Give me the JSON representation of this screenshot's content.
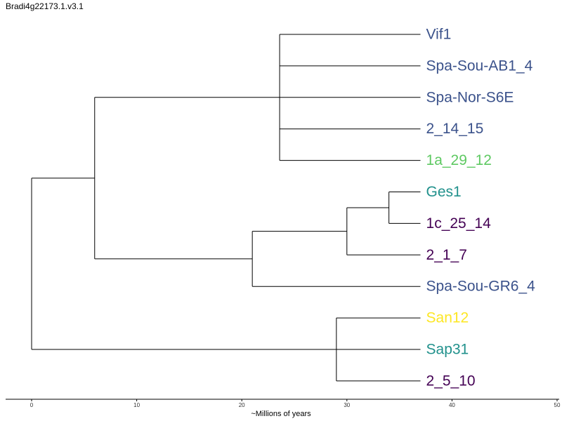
{
  "title": "Bradi4g22173.1.v3.1",
  "axis": {
    "label": "~Millions of years",
    "min": 0,
    "max": 50,
    "ticks": [
      0,
      10,
      20,
      30,
      40,
      50
    ]
  },
  "colors": {
    "blue": "#3b528b",
    "green": "#5ec962",
    "teal": "#21918c",
    "purple": "#440154",
    "yellow": "#fde725"
  },
  "leaves": [
    {
      "name": "Vif1",
      "color": "#3b528b"
    },
    {
      "name": "Spa-Sou-AB1_4",
      "color": "#3b528b"
    },
    {
      "name": "Spa-Nor-S6E",
      "color": "#3b528b"
    },
    {
      "name": "2_14_15",
      "color": "#3b528b"
    },
    {
      "name": "1a_29_12",
      "color": "#5ec962"
    },
    {
      "name": "Ges1",
      "color": "#21918c"
    },
    {
      "name": "1c_25_14",
      "color": "#440154"
    },
    {
      "name": "2_1_7",
      "color": "#440154"
    },
    {
      "name": "Spa-Sou-GR6_4",
      "color": "#3b528b"
    },
    {
      "name": "San12",
      "color": "#fde725"
    },
    {
      "name": "Sap31",
      "color": "#21918c"
    },
    {
      "name": "2_5_10",
      "color": "#440154"
    }
  ],
  "nodes": [
    {
      "id": "root",
      "time": 0,
      "children": [
        "A",
        "D"
      ]
    },
    {
      "id": "A",
      "time": 6,
      "children": [
        "B",
        "C"
      ]
    },
    {
      "id": "B",
      "time": 23.6,
      "children": [
        "L0",
        "L1",
        "L2",
        "L3",
        "L4"
      ]
    },
    {
      "id": "C",
      "time": 21,
      "children": [
        "E",
        "L8"
      ]
    },
    {
      "id": "E",
      "time": 30,
      "children": [
        "F",
        "L7"
      ]
    },
    {
      "id": "F",
      "time": 34,
      "children": [
        "L5",
        "L6"
      ]
    },
    {
      "id": "D",
      "time": 29,
      "children": [
        "L9",
        "L10",
        "L11"
      ]
    }
  ],
  "leaf_time": 37
}
